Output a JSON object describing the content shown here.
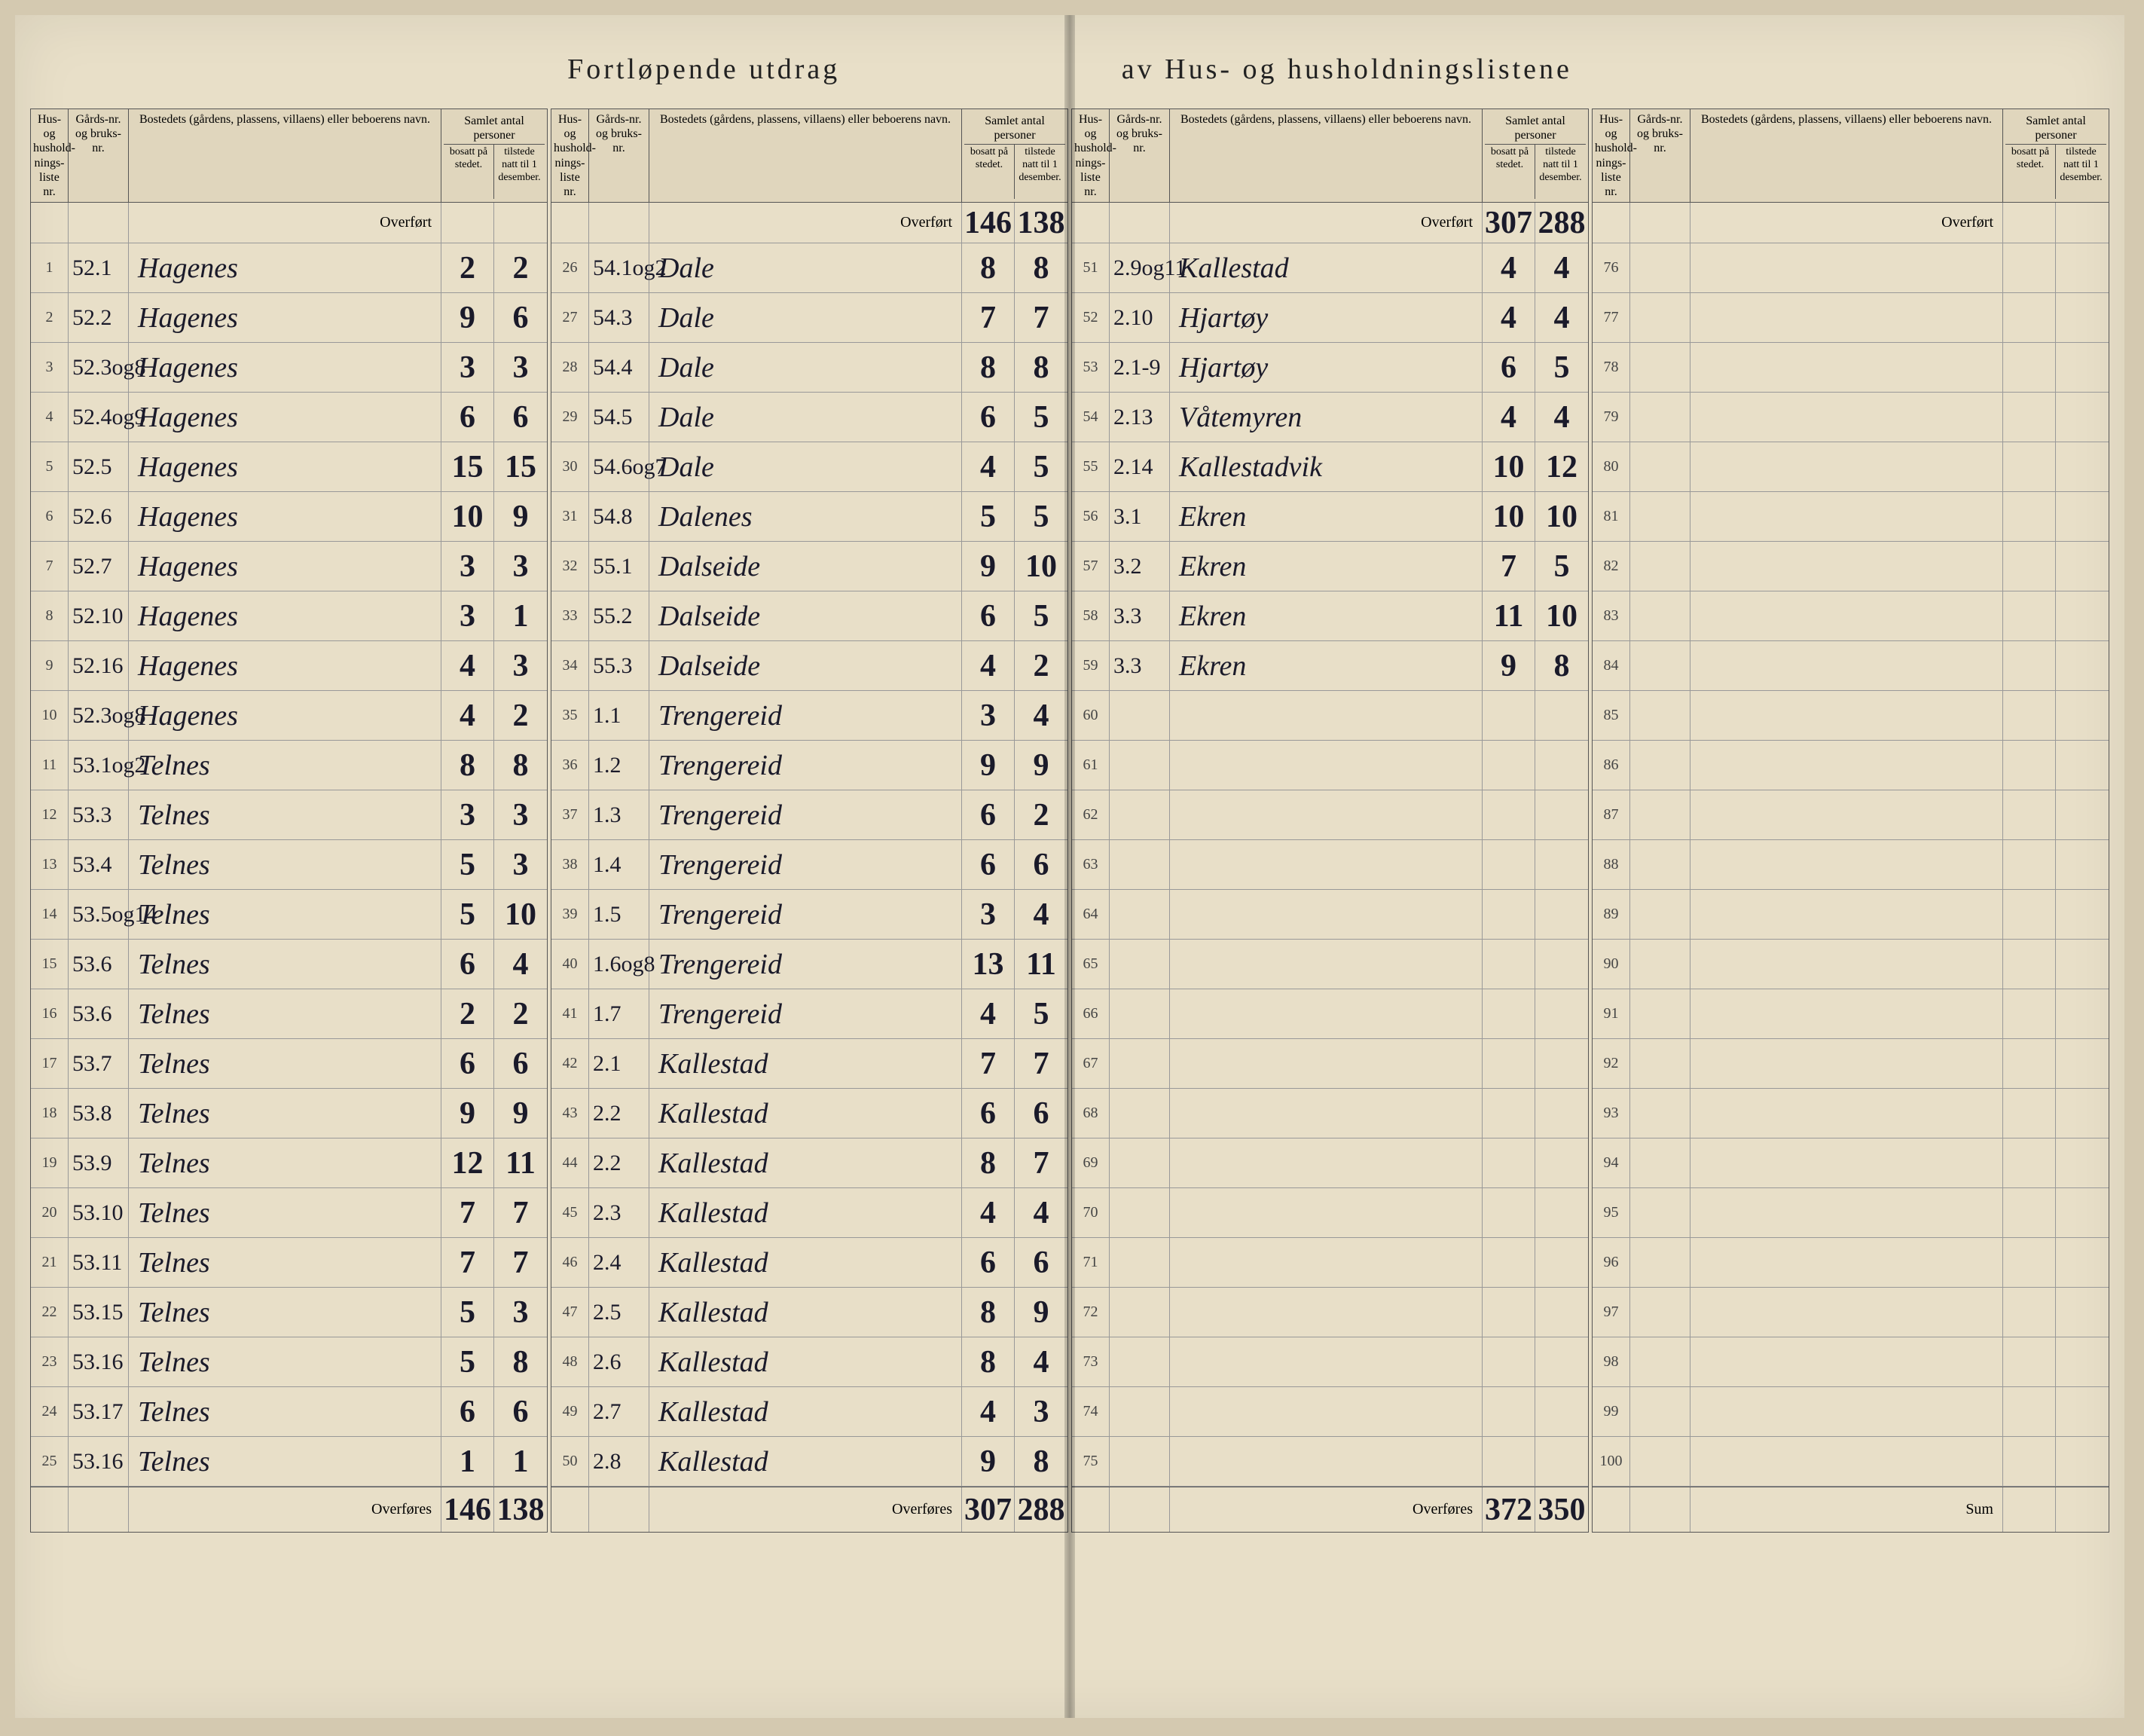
{
  "title_left": "Fortløpende utdrag",
  "title_right": "av Hus- og husholdningslistene",
  "headers": {
    "liste": "Hus- og hushold-nings-liste nr.",
    "gard": "Gårds-nr. og bruks-nr.",
    "navn": "Bostedets (gårdens, plassens, villaens) eller beboerens navn.",
    "samlet": "Samlet antal personer",
    "bosatt": "bosatt på stedet.",
    "tilstede": "tilstede natt til 1 desember."
  },
  "overfort_label": "Overført",
  "overfores_label": "Overføres",
  "sum_label": "Sum",
  "columns": [
    {
      "overfort": {
        "bosatt": "",
        "tilstede": ""
      },
      "rows": [
        {
          "n": "1",
          "g": "52.1",
          "navn": "Hagenes",
          "b": "2",
          "t": "2"
        },
        {
          "n": "2",
          "g": "52.2",
          "navn": "Hagenes",
          "b": "9",
          "t": "6"
        },
        {
          "n": "3",
          "g": "52.3og8",
          "navn": "Hagenes",
          "b": "3",
          "t": "3"
        },
        {
          "n": "4",
          "g": "52.4og9",
          "navn": "Hagenes",
          "b": "6",
          "t": "6"
        },
        {
          "n": "5",
          "g": "52.5",
          "navn": "Hagenes",
          "b": "15",
          "t": "15"
        },
        {
          "n": "6",
          "g": "52.6",
          "navn": "Hagenes",
          "b": "10",
          "t": "9"
        },
        {
          "n": "7",
          "g": "52.7",
          "navn": "Hagenes",
          "b": "3",
          "t": "3"
        },
        {
          "n": "8",
          "g": "52.10",
          "navn": "Hagenes",
          "b": "3",
          "t": "1"
        },
        {
          "n": "9",
          "g": "52.16",
          "navn": "Hagenes",
          "b": "4",
          "t": "3"
        },
        {
          "n": "10",
          "g": "52.3og8",
          "navn": "Hagenes",
          "b": "4",
          "t": "2"
        },
        {
          "n": "11",
          "g": "53.1og2",
          "navn": "Telnes",
          "b": "8",
          "t": "8"
        },
        {
          "n": "12",
          "g": "53.3",
          "navn": "Telnes",
          "b": "3",
          "t": "3"
        },
        {
          "n": "13",
          "g": "53.4",
          "navn": "Telnes",
          "b": "5",
          "t": "3"
        },
        {
          "n": "14",
          "g": "53.5og14",
          "navn": "Telnes",
          "b": "5",
          "t": "10"
        },
        {
          "n": "15",
          "g": "53.6",
          "navn": "Telnes",
          "b": "6",
          "t": "4"
        },
        {
          "n": "16",
          "g": "53.6",
          "navn": "Telnes",
          "b": "2",
          "t": "2"
        },
        {
          "n": "17",
          "g": "53.7",
          "navn": "Telnes",
          "b": "6",
          "t": "6"
        },
        {
          "n": "18",
          "g": "53.8",
          "navn": "Telnes",
          "b": "9",
          "t": "9"
        },
        {
          "n": "19",
          "g": "53.9",
          "navn": "Telnes",
          "b": "12",
          "t": "11"
        },
        {
          "n": "20",
          "g": "53.10",
          "navn": "Telnes",
          "b": "7",
          "t": "7"
        },
        {
          "n": "21",
          "g": "53.11",
          "navn": "Telnes",
          "b": "7",
          "t": "7"
        },
        {
          "n": "22",
          "g": "53.15",
          "navn": "Telnes",
          "b": "5",
          "t": "3"
        },
        {
          "n": "23",
          "g": "53.16",
          "navn": "Telnes",
          "b": "5",
          "t": "8"
        },
        {
          "n": "24",
          "g": "53.17",
          "navn": "Telnes",
          "b": "6",
          "t": "6"
        },
        {
          "n": "25",
          "g": "53.16",
          "navn": "Telnes",
          "b": "1",
          "t": "1"
        }
      ],
      "overfores": {
        "bosatt": "146",
        "tilstede": "138"
      }
    },
    {
      "overfort": {
        "bosatt": "146",
        "tilstede": "138"
      },
      "rows": [
        {
          "n": "26",
          "g": "54.1og2",
          "navn": "Dale",
          "b": "8",
          "t": "8"
        },
        {
          "n": "27",
          "g": "54.3",
          "navn": "Dale",
          "b": "7",
          "t": "7"
        },
        {
          "n": "28",
          "g": "54.4",
          "navn": "Dale",
          "b": "8",
          "t": "8"
        },
        {
          "n": "29",
          "g": "54.5",
          "navn": "Dale",
          "b": "6",
          "t": "5"
        },
        {
          "n": "30",
          "g": "54.6og7",
          "navn": "Dale",
          "b": "4",
          "t": "5"
        },
        {
          "n": "31",
          "g": "54.8",
          "navn": "Dalenes",
          "b": "5",
          "t": "5"
        },
        {
          "n": "32",
          "g": "55.1",
          "navn": "Dalseide",
          "b": "9",
          "t": "10"
        },
        {
          "n": "33",
          "g": "55.2",
          "navn": "Dalseide",
          "b": "6",
          "t": "5"
        },
        {
          "n": "34",
          "g": "55.3",
          "navn": "Dalseide",
          "b": "4",
          "t": "2"
        },
        {
          "n": "35",
          "g": "1.1",
          "navn": "Trengereid",
          "b": "3",
          "t": "4"
        },
        {
          "n": "36",
          "g": "1.2",
          "navn": "Trengereid",
          "b": "9",
          "t": "9"
        },
        {
          "n": "37",
          "g": "1.3",
          "navn": "Trengereid",
          "b": "6",
          "t": "2"
        },
        {
          "n": "38",
          "g": "1.4",
          "navn": "Trengereid",
          "b": "6",
          "t": "6"
        },
        {
          "n": "39",
          "g": "1.5",
          "navn": "Trengereid",
          "b": "3",
          "t": "4"
        },
        {
          "n": "40",
          "g": "1.6og8",
          "navn": "Trengereid",
          "b": "13",
          "t": "11"
        },
        {
          "n": "41",
          "g": "1.7",
          "navn": "Trengereid",
          "b": "4",
          "t": "5"
        },
        {
          "n": "42",
          "g": "2.1",
          "navn": "Kallestad",
          "b": "7",
          "t": "7"
        },
        {
          "n": "43",
          "g": "2.2",
          "navn": "Kallestad",
          "b": "6",
          "t": "6"
        },
        {
          "n": "44",
          "g": "2.2",
          "navn": "Kallestad",
          "b": "8",
          "t": "7"
        },
        {
          "n": "45",
          "g": "2.3",
          "navn": "Kallestad",
          "b": "4",
          "t": "4"
        },
        {
          "n": "46",
          "g": "2.4",
          "navn": "Kallestad",
          "b": "6",
          "t": "6"
        },
        {
          "n": "47",
          "g": "2.5",
          "navn": "Kallestad",
          "b": "8",
          "t": "9"
        },
        {
          "n": "48",
          "g": "2.6",
          "navn": "Kallestad",
          "b": "8",
          "t": "4"
        },
        {
          "n": "49",
          "g": "2.7",
          "navn": "Kallestad",
          "b": "4",
          "t": "3"
        },
        {
          "n": "50",
          "g": "2.8",
          "navn": "Kallestad",
          "b": "9",
          "t": "8"
        }
      ],
      "overfores": {
        "bosatt": "307",
        "tilstede": "288"
      }
    },
    {
      "overfort": {
        "bosatt": "307",
        "tilstede": "288"
      },
      "rows": [
        {
          "n": "51",
          "g": "2.9og11",
          "navn": "Kallestad",
          "b": "4",
          "t": "4"
        },
        {
          "n": "52",
          "g": "2.10",
          "navn": "Hjartøy",
          "b": "4",
          "t": "4"
        },
        {
          "n": "53",
          "g": "2.1-9",
          "navn": "Hjartøy",
          "b": "6",
          "t": "5"
        },
        {
          "n": "54",
          "g": "2.13",
          "navn": "Våtemyren",
          "b": "4",
          "t": "4"
        },
        {
          "n": "55",
          "g": "2.14",
          "navn": "Kallestadvik",
          "b": "10",
          "t": "12"
        },
        {
          "n": "56",
          "g": "3.1",
          "navn": "Ekren",
          "b": "10",
          "t": "10"
        },
        {
          "n": "57",
          "g": "3.2",
          "navn": "Ekren",
          "b": "7",
          "t": "5"
        },
        {
          "n": "58",
          "g": "3.3",
          "navn": "Ekren",
          "b": "11",
          "t": "10"
        },
        {
          "n": "59",
          "g": "3.3",
          "navn": "Ekren",
          "b": "9",
          "t": "8"
        },
        {
          "n": "60",
          "g": "",
          "navn": "",
          "b": "",
          "t": ""
        },
        {
          "n": "61",
          "g": "",
          "navn": "",
          "b": "",
          "t": ""
        },
        {
          "n": "62",
          "g": "",
          "navn": "",
          "b": "",
          "t": ""
        },
        {
          "n": "63",
          "g": "",
          "navn": "",
          "b": "",
          "t": ""
        },
        {
          "n": "64",
          "g": "",
          "navn": "",
          "b": "",
          "t": ""
        },
        {
          "n": "65",
          "g": "",
          "navn": "",
          "b": "",
          "t": ""
        },
        {
          "n": "66",
          "g": "",
          "navn": "",
          "b": "",
          "t": ""
        },
        {
          "n": "67",
          "g": "",
          "navn": "",
          "b": "",
          "t": ""
        },
        {
          "n": "68",
          "g": "",
          "navn": "",
          "b": "",
          "t": ""
        },
        {
          "n": "69",
          "g": "",
          "navn": "",
          "b": "",
          "t": ""
        },
        {
          "n": "70",
          "g": "",
          "navn": "",
          "b": "",
          "t": ""
        },
        {
          "n": "71",
          "g": "",
          "navn": "",
          "b": "",
          "t": ""
        },
        {
          "n": "72",
          "g": "",
          "navn": "",
          "b": "",
          "t": ""
        },
        {
          "n": "73",
          "g": "",
          "navn": "",
          "b": "",
          "t": ""
        },
        {
          "n": "74",
          "g": "",
          "navn": "",
          "b": "",
          "t": ""
        },
        {
          "n": "75",
          "g": "",
          "navn": "",
          "b": "",
          "t": ""
        }
      ],
      "overfores": {
        "bosatt": "372",
        "tilstede": "350"
      }
    },
    {
      "overfort": {
        "bosatt": "",
        "tilstede": ""
      },
      "rows": [
        {
          "n": "76",
          "g": "",
          "navn": "",
          "b": "",
          "t": ""
        },
        {
          "n": "77",
          "g": "",
          "navn": "",
          "b": "",
          "t": ""
        },
        {
          "n": "78",
          "g": "",
          "navn": "",
          "b": "",
          "t": ""
        },
        {
          "n": "79",
          "g": "",
          "navn": "",
          "b": "",
          "t": ""
        },
        {
          "n": "80",
          "g": "",
          "navn": "",
          "b": "",
          "t": ""
        },
        {
          "n": "81",
          "g": "",
          "navn": "",
          "b": "",
          "t": ""
        },
        {
          "n": "82",
          "g": "",
          "navn": "",
          "b": "",
          "t": ""
        },
        {
          "n": "83",
          "g": "",
          "navn": "",
          "b": "",
          "t": ""
        },
        {
          "n": "84",
          "g": "",
          "navn": "",
          "b": "",
          "t": ""
        },
        {
          "n": "85",
          "g": "",
          "navn": "",
          "b": "",
          "t": ""
        },
        {
          "n": "86",
          "g": "",
          "navn": "",
          "b": "",
          "t": ""
        },
        {
          "n": "87",
          "g": "",
          "navn": "",
          "b": "",
          "t": ""
        },
        {
          "n": "88",
          "g": "",
          "navn": "",
          "b": "",
          "t": ""
        },
        {
          "n": "89",
          "g": "",
          "navn": "",
          "b": "",
          "t": ""
        },
        {
          "n": "90",
          "g": "",
          "navn": "",
          "b": "",
          "t": ""
        },
        {
          "n": "91",
          "g": "",
          "navn": "",
          "b": "",
          "t": ""
        },
        {
          "n": "92",
          "g": "",
          "navn": "",
          "b": "",
          "t": ""
        },
        {
          "n": "93",
          "g": "",
          "navn": "",
          "b": "",
          "t": ""
        },
        {
          "n": "94",
          "g": "",
          "navn": "",
          "b": "",
          "t": ""
        },
        {
          "n": "95",
          "g": "",
          "navn": "",
          "b": "",
          "t": ""
        },
        {
          "n": "96",
          "g": "",
          "navn": "",
          "b": "",
          "t": ""
        },
        {
          "n": "97",
          "g": "",
          "navn": "",
          "b": "",
          "t": ""
        },
        {
          "n": "98",
          "g": "",
          "navn": "",
          "b": "",
          "t": ""
        },
        {
          "n": "99",
          "g": "",
          "navn": "",
          "b": "",
          "t": ""
        },
        {
          "n": "100",
          "g": "",
          "navn": "",
          "b": "",
          "t": ""
        }
      ],
      "overfores": {
        "bosatt": "",
        "tilstede": ""
      },
      "footer_label": "Sum"
    }
  ]
}
